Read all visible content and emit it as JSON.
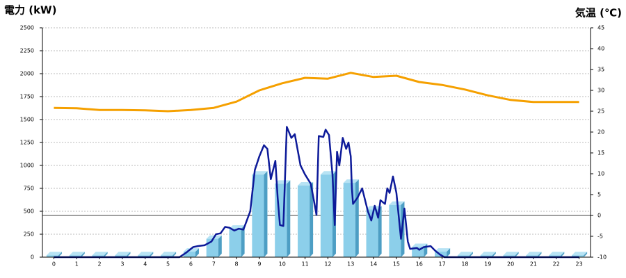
{
  "chart_data": {
    "type": "combo",
    "title": "電力 (kW)",
    "title_color": "#1a6ec0",
    "y2_title": "気温 (℃)",
    "y2_title_color": "#f39a1e",
    "categories": [
      "0",
      "1",
      "2",
      "3",
      "4",
      "5",
      "6",
      "7",
      "8",
      "9",
      "10",
      "11",
      "12",
      "13",
      "14",
      "15",
      "16",
      "17",
      "18",
      "19",
      "20",
      "21",
      "22",
      "23"
    ],
    "ylim": [
      0,
      2500
    ],
    "yticks": [
      0,
      250,
      500,
      750,
      1000,
      1250,
      1500,
      1750,
      2000,
      2250,
      2500
    ],
    "y2lim": [
      -10,
      45
    ],
    "y2ticks": [
      -10,
      -5,
      0,
      5,
      10,
      15,
      20,
      25,
      30,
      35,
      40,
      45
    ],
    "grid": true,
    "series": [
      {
        "type": "bar",
        "color": "#8ccfea",
        "values": [
          20,
          20,
          20,
          20,
          20,
          20,
          60,
          200,
          310,
          900,
          800,
          780,
          900,
          810,
          520,
          570,
          110,
          60,
          20,
          20,
          20,
          20,
          20,
          20
        ]
      },
      {
        "type": "line",
        "color": "#0d1a99",
        "x": [
          0,
          5.5,
          5.8,
          6.1,
          6.3,
          6.6,
          6.9,
          7.1,
          7.3,
          7.5,
          7.7,
          7.9,
          8.1,
          8.3,
          8.6,
          8.8,
          9.0,
          9.2,
          9.35,
          9.5,
          9.65,
          9.7,
          9.8,
          9.9,
          10.05,
          10.1,
          10.2,
          10.4,
          10.55,
          10.8,
          11.0,
          11.25,
          11.4,
          11.5,
          11.6,
          11.8,
          11.9,
          12.05,
          12.2,
          12.3,
          12.4,
          12.5,
          12.65,
          12.8,
          12.9,
          13.0,
          13.05,
          13.1,
          13.3,
          13.5,
          13.75,
          13.9,
          14.05,
          14.2,
          14.3,
          14.5,
          14.6,
          14.7,
          14.85,
          15.0,
          15.2,
          15.35,
          15.5,
          15.6,
          15.9,
          16.0,
          16.2,
          16.5,
          16.7,
          16.9,
          17.1,
          23.0
        ],
        "values": [
          0,
          0,
          50,
          110,
          120,
          130,
          170,
          250,
          260,
          330,
          320,
          290,
          310,
          300,
          500,
          950,
          1100,
          1220,
          1180,
          850,
          1000,
          1050,
          650,
          350,
          340,
          700,
          1420,
          1300,
          1340,
          1000,
          900,
          800,
          600,
          460,
          1320,
          1310,
          1390,
          1330,
          900,
          350,
          1150,
          1000,
          1300,
          1180,
          1250,
          1100,
          750,
          580,
          650,
          750,
          500,
          400,
          560,
          430,
          620,
          580,
          750,
          700,
          880,
          700,
          200,
          530,
          170,
          90,
          100,
          80,
          110,
          120,
          70,
          30,
          0,
          0
        ]
      },
      {
        "type": "line",
        "axis": "y2",
        "color": "#f5a000",
        "values": [
          25.8,
          25.7,
          25.3,
          25.3,
          25.2,
          25.0,
          25.3,
          25.8,
          27.3,
          30.0,
          31.7,
          33.0,
          32.8,
          34.2,
          33.2,
          33.5,
          32.0,
          31.3,
          30.2,
          28.8,
          27.7,
          27.2,
          27.2,
          27.2
        ]
      }
    ]
  }
}
